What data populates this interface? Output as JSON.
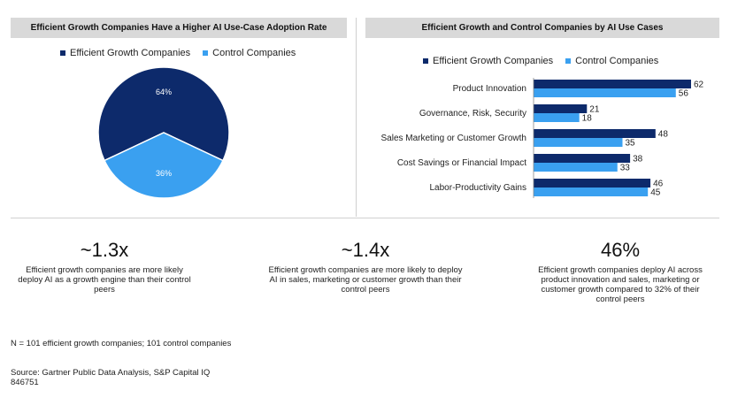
{
  "left_panel": {
    "title": "Efficient Growth Companies Have  a Higher AI Use-Case Adoption Rate"
  },
  "right_panel": {
    "title": "Efficient Growth and Control Companies by AI Use Cases"
  },
  "colors": {
    "efficient": "#0d2a6b",
    "control": "#3aa0f0",
    "header_bg": "#d9d9d9"
  },
  "legend": {
    "efficient": "Efficient Growth Companies",
    "control": "Control Companies"
  },
  "chart_data": [
    {
      "type": "pie",
      "title": "Efficient Growth Companies Have  a Higher AI Use-Case Adoption Rate",
      "slices": [
        {
          "name": "Efficient Growth Companies",
          "value": 64,
          "label": "64%"
        },
        {
          "name": "Control Companies",
          "value": 36,
          "label": "36%"
        }
      ]
    },
    {
      "type": "bar",
      "orientation": "horizontal",
      "title": "Efficient Growth and Control Companies by AI Use Cases",
      "categories": [
        "Product Innovation",
        "Governance, Risk, Security",
        "Sales Marketing or Customer Growth",
        "Cost Savings or Financial Impact",
        "Labor-Productivity Gains"
      ],
      "series": [
        {
          "name": "Efficient Growth Companies",
          "values": [
            62,
            21,
            48,
            38,
            46
          ]
        },
        {
          "name": "Control Companies",
          "values": [
            56,
            18,
            35,
            33,
            45
          ]
        }
      ],
      "xlim": [
        0,
        62
      ],
      "grid": false,
      "legend_position": "top"
    }
  ],
  "stats": [
    {
      "value": "~1.3x",
      "text": "Efficient growth companies are more likely deploy AI as a growth engine than their control peers"
    },
    {
      "value": "~1.4x",
      "text": "Efficient growth companies are more likely to deploy AI in sales, marketing or customer growth than their control peers"
    },
    {
      "value": "46%",
      "text": "Efficient growth companies deploy AI across product innovation and sales, marketing or customer growth compared to 32% of their control peers"
    }
  ],
  "footer": {
    "note": "N = 101 efficient growth companies; 101 control companies",
    "source": "Source: Gartner Public Data Analysis, S&P Capital IQ",
    "code": "846751"
  }
}
